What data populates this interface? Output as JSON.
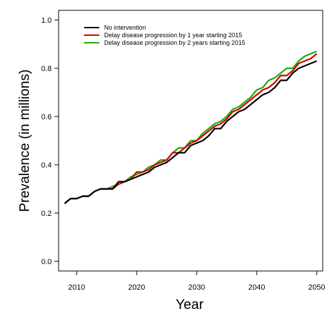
{
  "chart_data": {
    "type": "line",
    "title": "",
    "xlabel": "Year",
    "ylabel": "Prevalence (in millions)",
    "xlim": [
      2007,
      2051
    ],
    "ylim": [
      -0.04,
      1.04
    ],
    "xticks": [
      2010,
      2020,
      2030,
      2040,
      2050
    ],
    "xtick_labels": [
      "2010",
      "2020",
      "2030",
      "2040",
      "2050"
    ],
    "yticks": [
      0.0,
      0.2,
      0.4,
      0.6,
      0.8,
      1.0
    ],
    "ytick_labels": [
      "0.0",
      "0.2",
      "0.4",
      "0.6",
      "0.8",
      "1.0"
    ],
    "grid": false,
    "legend_position": "top-left",
    "x": [
      2008,
      2009,
      2010,
      2011,
      2012,
      2013,
      2014,
      2015,
      2016,
      2017,
      2018,
      2019,
      2020,
      2021,
      2022,
      2023,
      2024,
      2025,
      2026,
      2027,
      2028,
      2029,
      2030,
      2031,
      2032,
      2033,
      2034,
      2035,
      2036,
      2037,
      2038,
      2039,
      2040,
      2041,
      2042,
      2043,
      2044,
      2045,
      2046,
      2047,
      2048,
      2049,
      2050
    ],
    "series": [
      {
        "name": "No intervention",
        "color": "#000000",
        "values": [
          0.24,
          0.26,
          0.26,
          0.27,
          0.27,
          0.29,
          0.3,
          0.3,
          0.3,
          0.33,
          0.33,
          0.34,
          0.35,
          0.36,
          0.37,
          0.39,
          0.4,
          0.41,
          0.43,
          0.45,
          0.45,
          0.48,
          0.49,
          0.5,
          0.52,
          0.55,
          0.55,
          0.58,
          0.6,
          0.62,
          0.63,
          0.65,
          0.67,
          0.69,
          0.7,
          0.72,
          0.75,
          0.75,
          0.78,
          0.8,
          0.81,
          0.82,
          0.83
        ]
      },
      {
        "name": "Delay disease progression by 1 year starting 2015",
        "color": "#cc0000",
        "values": [
          0.24,
          0.26,
          0.26,
          0.27,
          0.27,
          0.29,
          0.3,
          0.3,
          0.3,
          0.32,
          0.33,
          0.34,
          0.37,
          0.37,
          0.38,
          0.4,
          0.41,
          0.42,
          0.45,
          0.45,
          0.47,
          0.49,
          0.5,
          0.52,
          0.54,
          0.56,
          0.57,
          0.59,
          0.62,
          0.63,
          0.65,
          0.67,
          0.69,
          0.71,
          0.72,
          0.74,
          0.77,
          0.77,
          0.79,
          0.82,
          0.83,
          0.84,
          0.86
        ]
      },
      {
        "name": "Delay disease progression by 2 years starting 2015",
        "color": "#1faa00",
        "values": [
          0.24,
          0.26,
          0.26,
          0.27,
          0.27,
          0.29,
          0.3,
          0.3,
          0.31,
          0.32,
          0.33,
          0.35,
          0.36,
          0.37,
          0.39,
          0.4,
          0.42,
          0.42,
          0.45,
          0.47,
          0.47,
          0.5,
          0.5,
          0.53,
          0.55,
          0.57,
          0.58,
          0.6,
          0.63,
          0.64,
          0.66,
          0.68,
          0.71,
          0.72,
          0.75,
          0.76,
          0.78,
          0.8,
          0.8,
          0.83,
          0.85,
          0.86,
          0.87
        ]
      }
    ]
  }
}
